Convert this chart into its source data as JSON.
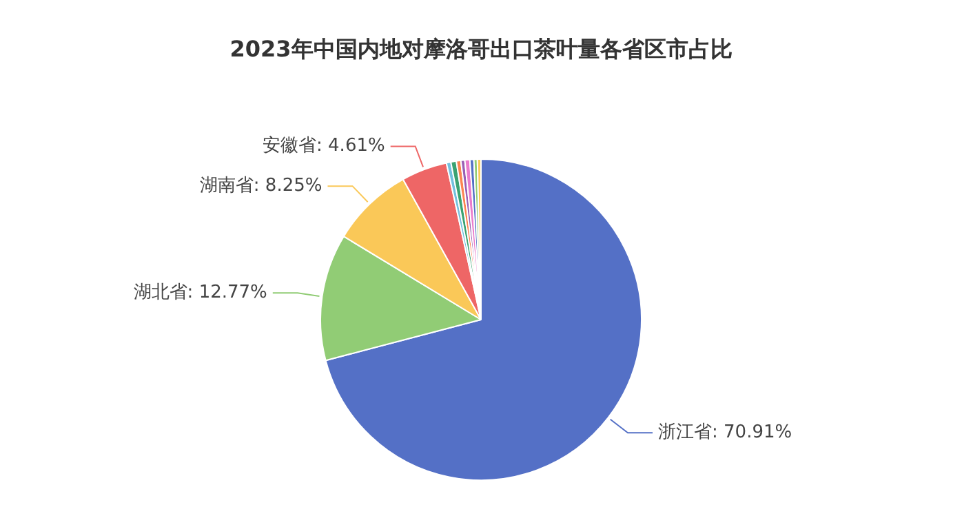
{
  "chart_data": {
    "type": "pie",
    "title": "2023年中国内地对摩洛哥出口茶叶量各省区市占比",
    "categories": [
      "浙江省",
      "湖北省",
      "湖南省",
      "安徽省",
      null,
      null,
      null,
      null,
      null,
      null,
      null,
      null
    ],
    "values": [
      70.91,
      12.77,
      8.25,
      4.61,
      0.45,
      0.55,
      0.45,
      0.4,
      0.5,
      0.4,
      0.35,
      0.36
    ],
    "value_labels": [
      "70.91%",
      "12.77%",
      "8.25%",
      "4.61%",
      null,
      null,
      null,
      null,
      null,
      null,
      null,
      null
    ],
    "colors": [
      "#5470c6",
      "#91cc75",
      "#fac858",
      "#ee6666",
      "#73c0de",
      "#3ba272",
      "#fc8452",
      "#9a60b4",
      "#ea7ccc",
      "#5470c6",
      "#91cc75",
      "#fac858"
    ],
    "legend": false
  }
}
